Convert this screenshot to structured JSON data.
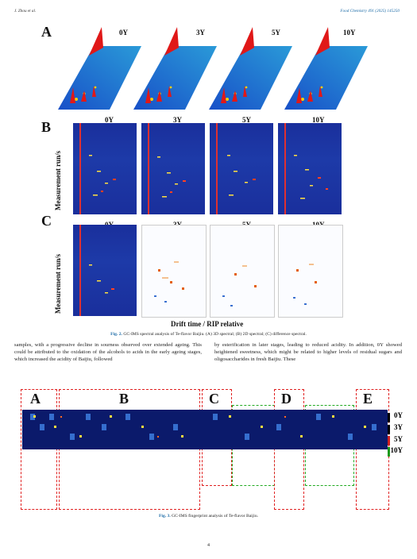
{
  "header": {
    "left": "J. Zhou et al.",
    "right": "Food Chemistry 491 (2025) 145250"
  },
  "fig2": {
    "panels": [
      "A",
      "B",
      "C"
    ],
    "ages": [
      "0Y",
      "3Y",
      "5Y",
      "10Y"
    ],
    "ylabel": "Measurement run/s",
    "xlabel": "Drift time / RIP relative",
    "caption_label": "Fig. 2.",
    "caption_text": "GC-IMS spectral analysis of Te-flavor Baijiu. (A) 3D spectral; (B) 2D spectral; (C) difference spectral."
  },
  "body": {
    "left": "samples, with a progressive decline in sourness observed over extended ageing. This could be attributed to the oxidation of the alcohols to acids in the early ageing stages, which increased the acidity of Baijiu, followed",
    "right": "by esterification in later stages, leading to reduced acidity. In addition, 0Y showed heightened sweetness, which might be related to higher levels of residual sugars and oligosaccharides in fresh Baijiu. These"
  },
  "fig3": {
    "groups": [
      "A",
      "B",
      "C",
      "D",
      "E"
    ],
    "legend": [
      "0Y",
      "3Y",
      "5Y",
      "10Y"
    ],
    "legend_colors": [
      "#000000",
      "#000000",
      "#d02020",
      "#1c9a1c"
    ],
    "caption_label": "Fig. 3.",
    "caption_text": "GC-IMS fingerprint analysis of Te-flavor Baijiu."
  },
  "page_number": "4"
}
